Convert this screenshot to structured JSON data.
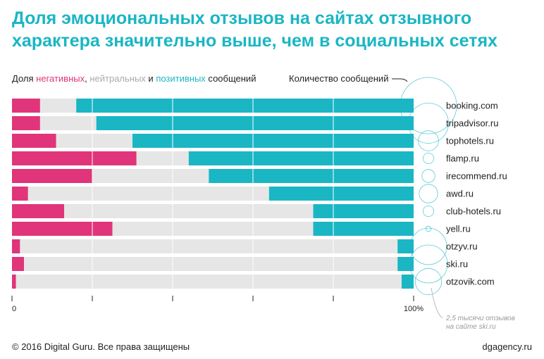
{
  "title_line1": "Доля эмоциональных отзывов на сайтах отзывного",
  "title_line2": "характера значительно выше, чем в социальных сетях",
  "legend": {
    "prefix": "Доля ",
    "negative": "негативных",
    "sep1": ", ",
    "neutral": "нейтральных",
    "sep2": " и ",
    "positive": "позитивных",
    "suffix": " сообщений"
  },
  "count_label": "Количество сообщений",
  "annotation_line1": "2,5 тысячи отзывов",
  "annotation_line2": "на сайте ski.ru",
  "footer_left": "© 2016 Digital Guru. Все права защищены",
  "footer_right": "dgagency.ru",
  "colors": {
    "negative": "#e0357a",
    "neutral": "#e6e6e6",
    "positive": "#1ab6c4",
    "grid": "#ffffff",
    "circle": "#1ab6c4"
  },
  "chart_data": {
    "type": "bar",
    "stacked": true,
    "orientation": "horizontal",
    "xlim": [
      0,
      100
    ],
    "x_ticks": [
      "0",
      "",
      "",
      "",
      "",
      "100%"
    ],
    "categories": [
      "booking.com",
      "tripadvisor.ru",
      "tophotels.ru",
      "flamp.ru",
      "irecommend.ru",
      "awd.ru",
      "club-hotels.ru",
      "yell.ru",
      "otzyv.ru",
      "ski.ru",
      "otzovik.com"
    ],
    "series": [
      {
        "name": "негативных",
        "values": [
          7,
          7,
          11,
          31,
          20,
          4,
          13,
          25,
          2,
          3,
          1
        ]
      },
      {
        "name": "нейтральных",
        "values": [
          9,
          14,
          19,
          13,
          29,
          60,
          62,
          50,
          94,
          93,
          96
        ]
      },
      {
        "name": "позитивных",
        "values": [
          84,
          79,
          70,
          56,
          51,
          36,
          25,
          25,
          4,
          4,
          3
        ]
      }
    ],
    "message_counts_thousands": [
      5.5,
      2.8,
      0.7,
      0.2,
      0.3,
      0.6,
      0.2,
      0.05,
      2.3,
      2.5,
      1.2
    ]
  }
}
